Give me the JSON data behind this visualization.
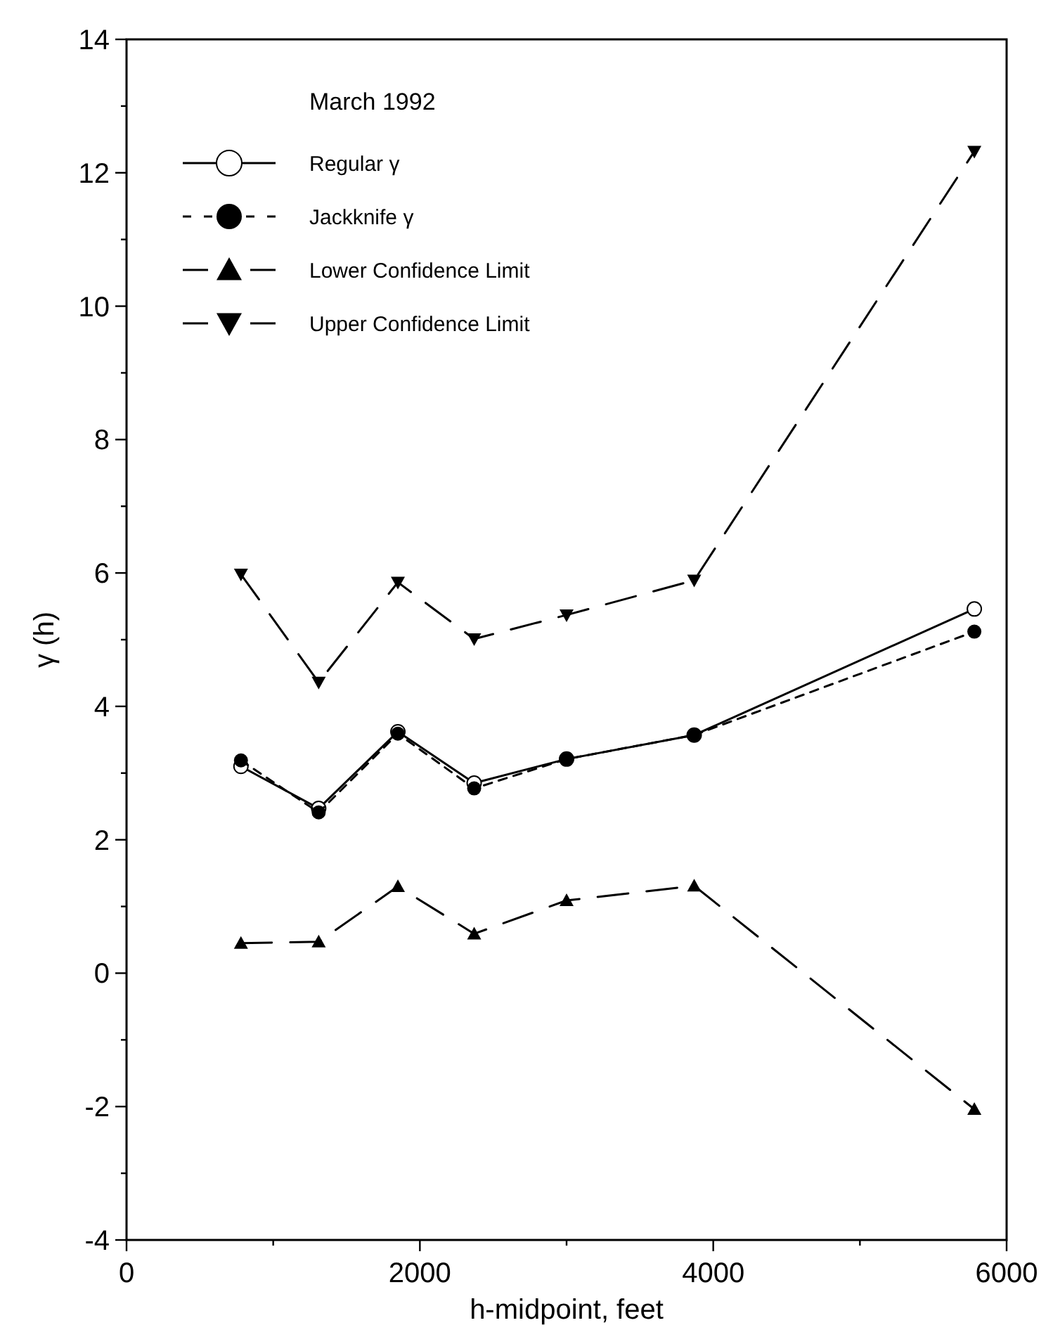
{
  "chart_data": {
    "type": "line",
    "xlabel": "h-midpoint, feet",
    "ylabel": "γ (h)",
    "legend_title": "March 1992",
    "legend": "top left",
    "x": [
      780,
      1310,
      1850,
      2370,
      3000,
      3870,
      5780
    ],
    "series": [
      {
        "name": "Regular γ",
        "color": "#000000",
        "marker": "circle-open",
        "line_style": "solid",
        "values": [
          3.1,
          2.47,
          3.62,
          2.85,
          3.21,
          3.57,
          5.46
        ]
      },
      {
        "name": "Jackknife γ",
        "color": "#000000",
        "marker": "circle",
        "line_style": "dashed",
        "values": [
          3.19,
          2.41,
          3.59,
          2.77,
          3.21,
          3.57,
          5.12
        ]
      },
      {
        "name": "Lower Confidence Limit",
        "color": "#000000",
        "marker": "triangle",
        "line_style": "longdash",
        "values": [
          0.45,
          0.47,
          1.3,
          0.59,
          1.09,
          1.31,
          -2.04
        ]
      },
      {
        "name": "Upper Confidence Limit",
        "color": "#000000",
        "marker": "triangle-down",
        "line_style": "longdash",
        "values": [
          5.98,
          4.36,
          5.86,
          5.01,
          5.37,
          5.89,
          12.32
        ]
      }
    ],
    "xlim": [
      0,
      6000
    ],
    "ylim": [
      -4,
      14
    ],
    "xticks": [
      0,
      {
        "value": 1000,
        "label": null
      },
      2000,
      {
        "value": 3000,
        "label": null
      },
      4000,
      {
        "value": 5000,
        "label": null
      },
      6000
    ],
    "yticks": [
      -4,
      {
        "value": -3,
        "label": null
      },
      -2,
      {
        "value": -1,
        "label": null
      },
      0,
      {
        "value": 1,
        "label": null
      },
      2,
      {
        "value": 3,
        "label": null
      },
      4,
      {
        "value": 5,
        "label": null
      },
      6,
      {
        "value": 7,
        "label": null
      },
      8,
      {
        "value": 9,
        "label": null
      },
      10,
      {
        "value": 11,
        "label": null
      },
      12,
      {
        "value": 13,
        "label": null
      },
      14
    ],
    "grid": false
  }
}
